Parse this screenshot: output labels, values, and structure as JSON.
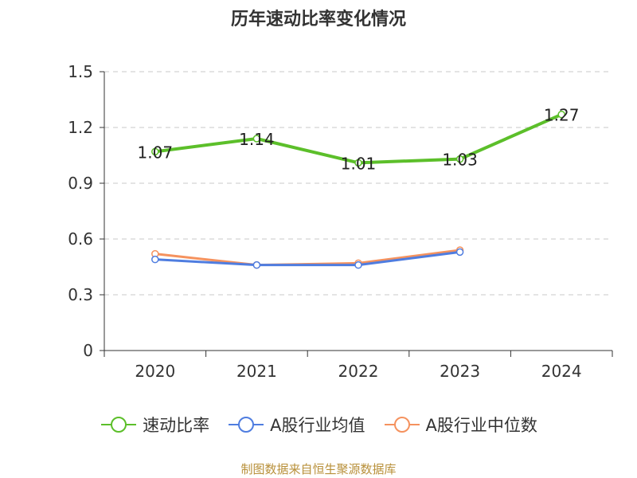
{
  "chart_data": {
    "type": "line",
    "title": "历年速动比率变化情况",
    "categories": [
      "2020",
      "2021",
      "2022",
      "2023",
      "2024"
    ],
    "ylim": [
      0,
      1.5
    ],
    "yticks": [
      0,
      0.3,
      0.6,
      0.9,
      1.2,
      1.5
    ],
    "ytick_labels": [
      "0",
      "0.3",
      "0.6",
      "0.9",
      "1.2",
      "1.5"
    ],
    "grid": true,
    "legend_position": "bottom",
    "series": [
      {
        "name": "速动比率",
        "color": "#5cbf2a",
        "values": [
          1.07,
          1.14,
          1.01,
          1.03,
          1.27
        ],
        "labels": [
          "1.07",
          "1.14",
          "1.01",
          "1.03",
          "1.27"
        ]
      },
      {
        "name": "A股行业均值",
        "color": "#4f7de0",
        "values": [
          0.49,
          0.46,
          0.46,
          0.53,
          null
        ]
      },
      {
        "name": "A股行业中位数",
        "color": "#f5925e",
        "values": [
          0.52,
          0.46,
          0.47,
          0.54,
          null
        ]
      }
    ]
  },
  "footer": {
    "source": "制图数据来自恒生聚源数据库"
  }
}
